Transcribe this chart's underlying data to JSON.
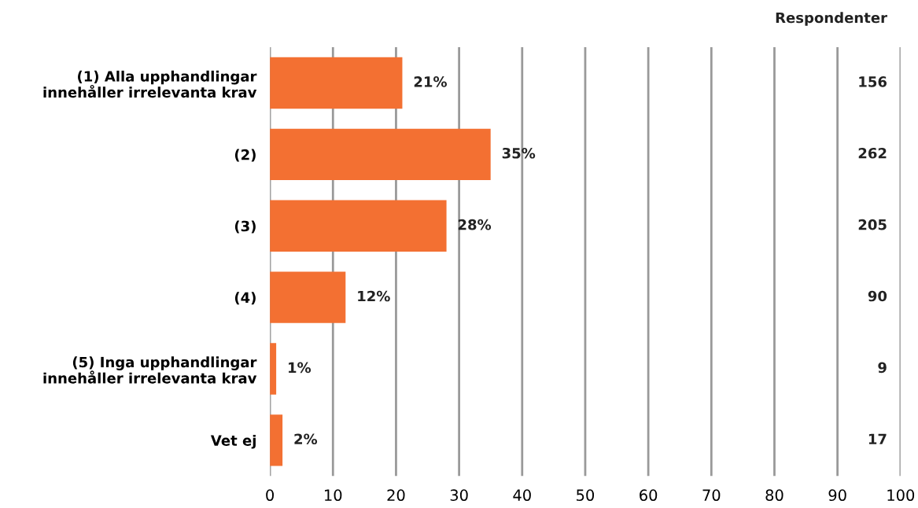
{
  "chart_data": {
    "type": "bar",
    "orientation": "horizontal",
    "categories": [
      "(1) Alla upphandlingar\ninnehåller irrelevanta krav",
      "(2)",
      "(3)",
      "(4)",
      "(5) Inga upphandlingar\ninnehåller irrelevanta krav",
      "Vet ej"
    ],
    "values": [
      21,
      35,
      28,
      12,
      1,
      2
    ],
    "value_labels": [
      "21%",
      "35%",
      "28%",
      "12%",
      "1%",
      "2%"
    ],
    "color": "#f37032",
    "xlim": [
      0,
      100
    ],
    "xticks": [
      0,
      10,
      20,
      30,
      40,
      50,
      60,
      70,
      80,
      90,
      100
    ],
    "grid": "x",
    "legend": false,
    "annotations": [
      "Respondenter",
      {
        "text": "156",
        "y": "(1) Alla upphandlingar\ninnehåller irrelevanta krav"
      },
      {
        "text": "262",
        "y": "(2)"
      },
      {
        "text": "205",
        "y": "(3)"
      },
      {
        "text": "90",
        "y": "(4)"
      },
      {
        "text": "9",
        "y": "(5) Inga upphandlingar\ninnehåller irrelevanta krav"
      },
      {
        "text": "17",
        "y": "Vet ej"
      }
    ]
  }
}
